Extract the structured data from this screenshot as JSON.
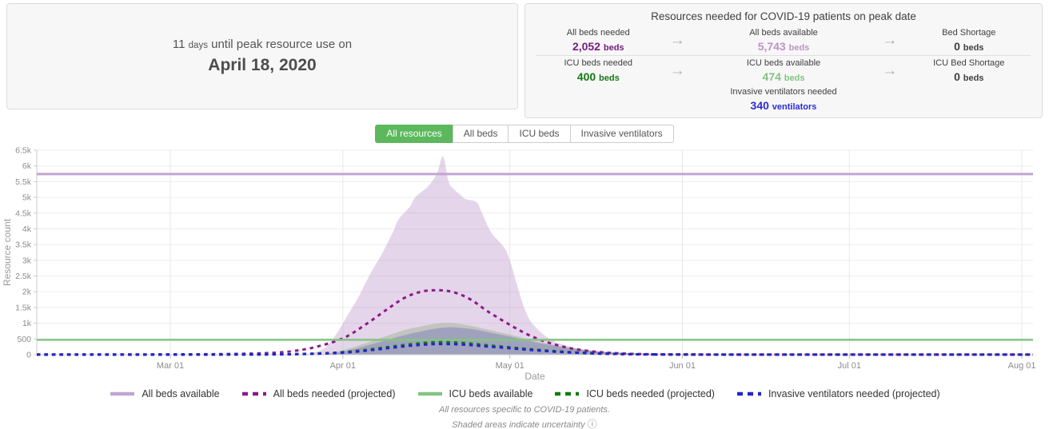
{
  "peak_panel": {
    "lead_value": "11",
    "lead_unit": "days",
    "line1_rest": "until peak resource use on",
    "date": "April 18, 2020"
  },
  "resources_panel": {
    "title": "Resources needed for COVID-19 patients on peak date",
    "arrow": "→",
    "row1": {
      "c1": {
        "label": "All beds needed",
        "value": "2,052",
        "unit": "beds",
        "color": "#761a7e"
      },
      "c2": {
        "label": "All beds available",
        "value": "5,743",
        "unit": "beds",
        "color": "#c091c9"
      },
      "c3": {
        "label": "Bed Shortage",
        "value": "0",
        "unit": "beds",
        "color": "#404040"
      }
    },
    "row2": {
      "c1": {
        "label": "ICU beds needed",
        "value": "400",
        "unit": "beds",
        "color": "#157a15"
      },
      "c2": {
        "label": "ICU beds available",
        "value": "474",
        "unit": "beds",
        "color": "#82c382"
      },
      "c3": {
        "label": "ICU Bed Shortage",
        "value": "0",
        "unit": "beds",
        "color": "#404040"
      }
    },
    "row3": {
      "c2": {
        "label": "Invasive ventilators needed",
        "value": "340",
        "unit": "ventilators",
        "color": "#2b2bd5"
      }
    }
  },
  "tabs": {
    "active_color": "#5cb85c",
    "items": [
      {
        "label": "All resources",
        "active": true
      },
      {
        "label": "All beds",
        "active": false
      },
      {
        "label": "ICU beds",
        "active": false
      },
      {
        "label": "Invasive ventilators",
        "active": false
      }
    ]
  },
  "chart_data": {
    "type": "line",
    "title": "",
    "xlabel": "Date",
    "ylabel": "Resource count",
    "x_unit": "days since Feb 06 2020",
    "x_domain": [
      0,
      179
    ],
    "ylim": [
      0,
      6500
    ],
    "grid": true,
    "legend_position": "bottom",
    "y_ticks": [
      {
        "value": 0,
        "label": "0"
      },
      {
        "value": 500,
        "label": "500"
      },
      {
        "value": 1000,
        "label": "1k"
      },
      {
        "value": 1500,
        "label": "1.5k"
      },
      {
        "value": 2000,
        "label": "2k"
      },
      {
        "value": 2500,
        "label": "2.5k"
      },
      {
        "value": 3000,
        "label": "3k"
      },
      {
        "value": 3500,
        "label": "3.5k"
      },
      {
        "value": 4000,
        "label": "4k"
      },
      {
        "value": 4500,
        "label": "4.5k"
      },
      {
        "value": 5000,
        "label": "5k"
      },
      {
        "value": 5500,
        "label": "5.5k"
      },
      {
        "value": 6000,
        "label": "6k"
      },
      {
        "value": 6500,
        "label": "6.5k"
      }
    ],
    "x_ticks": [
      {
        "label": "Mar 01",
        "day": 24
      },
      {
        "label": "Apr 01",
        "day": 55
      },
      {
        "label": "May 01",
        "day": 85
      },
      {
        "label": "Jun 01",
        "day": 116
      },
      {
        "label": "Jul 01",
        "day": 146
      },
      {
        "label": "Aug 01",
        "day": 177
      }
    ],
    "bands": [
      {
        "id": "all-beds-uncertainty",
        "color": "rgba(187,144,200,0.38)",
        "points": [
          [
            48,
            0
          ],
          [
            50,
            80
          ],
          [
            52,
            250
          ],
          [
            54,
            700
          ],
          [
            56,
            1300
          ],
          [
            58,
            1900
          ],
          [
            60,
            2600
          ],
          [
            62,
            3200
          ],
          [
            64,
            3900
          ],
          [
            65,
            4300
          ],
          [
            67,
            4700
          ],
          [
            68,
            5000
          ],
          [
            70,
            5300
          ],
          [
            71,
            5500
          ],
          [
            72,
            5800
          ],
          [
            73,
            6300
          ],
          [
            74,
            5500
          ],
          [
            75,
            5250
          ],
          [
            76,
            5100
          ],
          [
            77,
            4950
          ],
          [
            79,
            4850
          ],
          [
            80,
            4500
          ],
          [
            81,
            4100
          ],
          [
            82,
            3800
          ],
          [
            84,
            3400
          ],
          [
            85,
            3000
          ],
          [
            86,
            2400
          ],
          [
            87,
            1800
          ],
          [
            88,
            1300
          ],
          [
            89,
            1000
          ],
          [
            91,
            650
          ],
          [
            93,
            420
          ],
          [
            95,
            300
          ],
          [
            97,
            200
          ],
          [
            99,
            130
          ],
          [
            102,
            70
          ],
          [
            106,
            30
          ],
          [
            111,
            12
          ],
          [
            116,
            5
          ],
          [
            121,
            0
          ]
        ]
      },
      {
        "id": "icu-beds-uncertainty",
        "color": "rgba(151,178,140,0.45)",
        "points": [
          [
            51,
            0
          ],
          [
            54,
            100
          ],
          [
            57,
            250
          ],
          [
            60,
            420
          ],
          [
            63,
            600
          ],
          [
            66,
            780
          ],
          [
            69,
            900
          ],
          [
            71,
            970
          ],
          [
            73,
            1010
          ],
          [
            75,
            1000
          ],
          [
            77,
            950
          ],
          [
            79,
            880
          ],
          [
            81,
            800
          ],
          [
            83,
            720
          ],
          [
            85,
            640
          ],
          [
            87,
            550
          ],
          [
            89,
            460
          ],
          [
            91,
            380
          ],
          [
            94,
            280
          ],
          [
            97,
            195
          ],
          [
            100,
            130
          ],
          [
            103,
            85
          ],
          [
            107,
            45
          ],
          [
            111,
            22
          ],
          [
            116,
            9
          ],
          [
            121,
            0
          ]
        ]
      },
      {
        "id": "ventilators-uncertainty",
        "color": "rgba(114,114,186,0.42)",
        "points": [
          [
            51,
            0
          ],
          [
            54,
            70
          ],
          [
            57,
            180
          ],
          [
            60,
            320
          ],
          [
            63,
            470
          ],
          [
            66,
            620
          ],
          [
            69,
            740
          ],
          [
            71,
            810
          ],
          [
            73,
            860
          ],
          [
            75,
            870
          ],
          [
            77,
            840
          ],
          [
            79,
            790
          ],
          [
            81,
            720
          ],
          [
            83,
            650
          ],
          [
            85,
            580
          ],
          [
            87,
            500
          ],
          [
            89,
            420
          ],
          [
            91,
            345
          ],
          [
            94,
            255
          ],
          [
            97,
            180
          ],
          [
            100,
            120
          ],
          [
            103,
            78
          ],
          [
            107,
            42
          ],
          [
            111,
            20
          ],
          [
            116,
            9
          ],
          [
            123,
            0
          ]
        ]
      }
    ],
    "series": [
      {
        "id": "all-beds-available",
        "name": "All beds available",
        "style": "solid",
        "color": "#c2a5cf",
        "width": 3,
        "constant": 5743
      },
      {
        "id": "all-beds-needed",
        "name": "All beds needed (projected)",
        "style": "dashed",
        "color": "#8b1a8b",
        "width": 3,
        "points": [
          [
            0,
            4
          ],
          [
            15,
            6
          ],
          [
            25,
            10
          ],
          [
            35,
            22
          ],
          [
            42,
            55
          ],
          [
            46,
            115
          ],
          [
            50,
            240
          ],
          [
            55,
            520
          ],
          [
            59,
            950
          ],
          [
            63,
            1450
          ],
          [
            66,
            1800
          ],
          [
            69,
            2000
          ],
          [
            72,
            2052
          ],
          [
            75,
            1980
          ],
          [
            78,
            1750
          ],
          [
            81,
            1380
          ],
          [
            85,
            950
          ],
          [
            88,
            660
          ],
          [
            91,
            440
          ],
          [
            94,
            280
          ],
          [
            97,
            170
          ],
          [
            101,
            85
          ],
          [
            105,
            40
          ],
          [
            110,
            15
          ],
          [
            116,
            6
          ],
          [
            126,
            3
          ],
          [
            179,
            2
          ]
        ]
      },
      {
        "id": "icu-beds-available",
        "name": "ICU beds available",
        "style": "solid",
        "color": "#82c582",
        "width": 2.5,
        "constant": 474
      },
      {
        "id": "icu-beds-needed",
        "name": "ICU beds needed (projected)",
        "style": "dashed",
        "color": "#0d7d0d",
        "width": 3,
        "points": [
          [
            0,
            2
          ],
          [
            25,
            4
          ],
          [
            41,
            9
          ],
          [
            47,
            22
          ],
          [
            51,
            42
          ],
          [
            55,
            80
          ],
          [
            59,
            150
          ],
          [
            63,
            240
          ],
          [
            67,
            330
          ],
          [
            70,
            380
          ],
          [
            72,
            400
          ],
          [
            75,
            390
          ],
          [
            78,
            355
          ],
          [
            81,
            300
          ],
          [
            85,
            235
          ],
          [
            89,
            170
          ],
          [
            93,
            115
          ],
          [
            97,
            70
          ],
          [
            101,
            40
          ],
          [
            106,
            18
          ],
          [
            111,
            8
          ],
          [
            118,
            4
          ],
          [
            179,
            2
          ]
        ]
      },
      {
        "id": "ventilators-needed",
        "name": "Invasive ventilators needed (projected)",
        "style": "dashed",
        "color": "#2323cd",
        "width": 3,
        "points": [
          [
            0,
            2
          ],
          [
            25,
            3
          ],
          [
            41,
            7
          ],
          [
            47,
            18
          ],
          [
            51,
            35
          ],
          [
            55,
            63
          ],
          [
            59,
            125
          ],
          [
            63,
            205
          ],
          [
            67,
            285
          ],
          [
            70,
            325
          ],
          [
            72,
            340
          ],
          [
            75,
            333
          ],
          [
            78,
            305
          ],
          [
            81,
            260
          ],
          [
            85,
            205
          ],
          [
            89,
            148
          ],
          [
            93,
            100
          ],
          [
            97,
            62
          ],
          [
            101,
            35
          ],
          [
            106,
            16
          ],
          [
            111,
            7
          ],
          [
            118,
            4
          ],
          [
            179,
            2
          ]
        ]
      }
    ]
  },
  "footnotes": {
    "line1": "All resources specific to COVID-19 patients.",
    "line2": "Shaded areas indicate uncertainty",
    "info_icon": "ⓘ"
  }
}
